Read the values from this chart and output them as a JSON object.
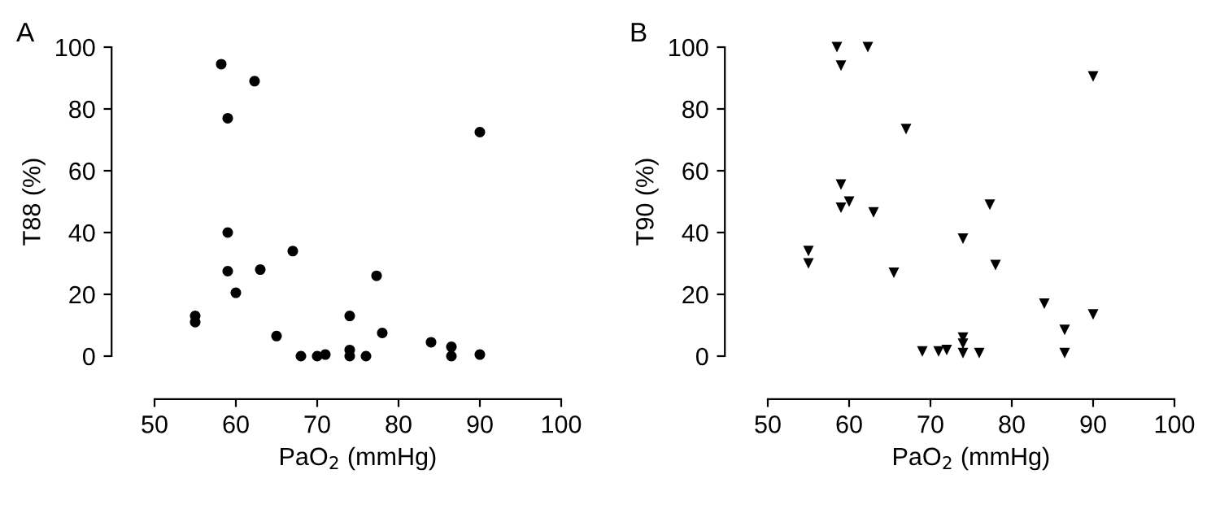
{
  "chart_data": [
    {
      "type": "scatter",
      "title": "A",
      "xlabel": "PaO$_{2}$ (mmHg)",
      "ylabel": "T88 (%)",
      "marker": "circle",
      "xlim": [
        50,
        100
      ],
      "xticks": [
        50,
        60,
        70,
        80,
        90,
        100
      ],
      "ylim": [
        0,
        100
      ],
      "yticks": [
        0,
        20,
        40,
        60,
        80,
        100
      ],
      "grid": false,
      "legend": false,
      "series": [
        {
          "color": "#000000",
          "x": [
            55,
            55,
            58.2,
            59,
            59,
            59,
            60,
            62.3,
            63,
            65,
            67,
            68,
            70,
            71,
            74,
            74,
            74,
            76,
            77.3,
            78,
            84,
            86.5,
            86.5,
            90,
            90
          ],
          "values": [
            13,
            11,
            94.5,
            77,
            40,
            27.5,
            20.5,
            89,
            28,
            6.5,
            34,
            0,
            0,
            0.5,
            13,
            2,
            0,
            0,
            26,
            7.5,
            4.5,
            3,
            0,
            72.5,
            0.5
          ]
        }
      ]
    },
    {
      "type": "scatter",
      "title": "B",
      "xlabel": "PaO$_{2}$ (mmHg)",
      "ylabel": "T90 (%)",
      "marker": "triangle",
      "xlim": [
        50,
        100
      ],
      "xticks": [
        50,
        60,
        70,
        80,
        90,
        100
      ],
      "ylim": [
        0,
        100
      ],
      "yticks": [
        0,
        20,
        40,
        60,
        80,
        100
      ],
      "grid": false,
      "legend": false,
      "series": [
        {
          "color": "#000000",
          "x": [
            55,
            55,
            58.5,
            59,
            59,
            59,
            60,
            62.3,
            63,
            67,
            65.5,
            69,
            71,
            72,
            74,
            74,
            74,
            74,
            76,
            77.3,
            78,
            84,
            86.5,
            86.5,
            90,
            90
          ],
          "values": [
            34,
            30,
            100,
            94,
            55.5,
            48,
            50,
            100,
            46.5,
            73.5,
            27,
            1.5,
            1.5,
            2,
            38,
            6,
            4,
            1,
            1,
            49,
            29.5,
            17,
            8.5,
            1,
            90.5,
            13.5
          ]
        }
      ]
    }
  ]
}
